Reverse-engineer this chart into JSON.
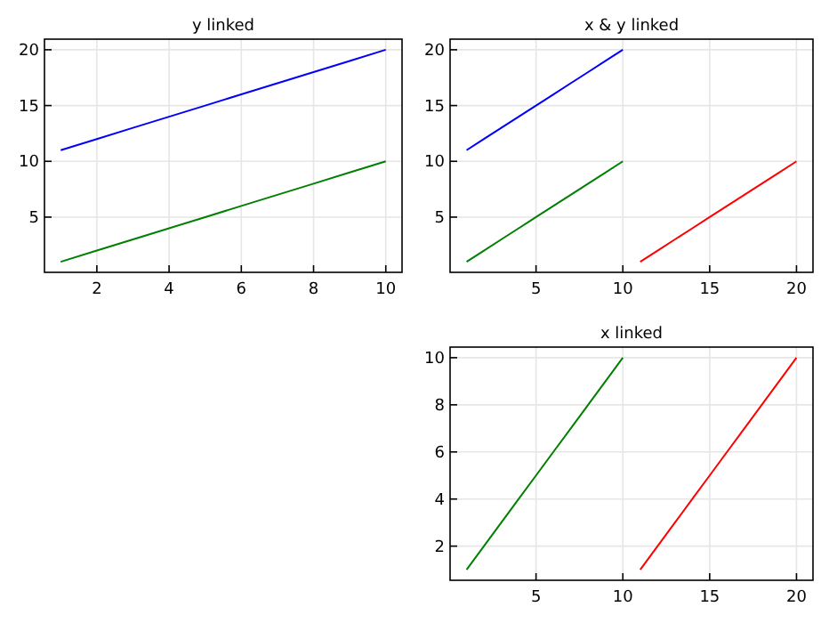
{
  "chart_data": [
    {
      "type": "line",
      "title": "y linked",
      "grid": true,
      "xlim": [
        0.55,
        10.45
      ],
      "xticks": [
        2,
        4,
        6,
        8,
        10
      ],
      "ylim": [
        0.05,
        20.95
      ],
      "yticks": [
        5,
        10,
        15,
        20
      ],
      "series": [
        {
          "color": "#0000ff",
          "x": [
            1,
            2,
            3,
            4,
            5,
            6,
            7,
            8,
            9,
            10
          ],
          "values": [
            11,
            12,
            13,
            14,
            15,
            16,
            17,
            18,
            19,
            20
          ]
        },
        {
          "color": "#008000",
          "x": [
            1,
            2,
            3,
            4,
            5,
            6,
            7,
            8,
            9,
            10
          ],
          "values": [
            1,
            2,
            3,
            4,
            5,
            6,
            7,
            8,
            9,
            10
          ]
        }
      ]
    },
    {
      "type": "line",
      "title": "x & y linked",
      "grid": true,
      "xlim": [
        0.05,
        20.95
      ],
      "xticks": [
        5,
        10,
        15,
        20
      ],
      "ylim": [
        0.05,
        20.95
      ],
      "yticks": [
        5,
        10,
        15,
        20
      ],
      "series": [
        {
          "color": "#0000ff",
          "x": [
            1,
            2,
            3,
            4,
            5,
            6,
            7,
            8,
            9,
            10
          ],
          "values": [
            11,
            12,
            13,
            14,
            15,
            16,
            17,
            18,
            19,
            20
          ]
        },
        {
          "color": "#008000",
          "x": [
            1,
            2,
            3,
            4,
            5,
            6,
            7,
            8,
            9,
            10
          ],
          "values": [
            1,
            2,
            3,
            4,
            5,
            6,
            7,
            8,
            9,
            10
          ]
        },
        {
          "color": "#ff0000",
          "x": [
            11,
            12,
            13,
            14,
            15,
            16,
            17,
            18,
            19,
            20
          ],
          "values": [
            1,
            2,
            3,
            4,
            5,
            6,
            7,
            8,
            9,
            10
          ]
        }
      ]
    },
    {
      "type": "line",
      "title": "x linked",
      "grid": true,
      "xlim": [
        0.05,
        20.95
      ],
      "xticks": [
        5,
        10,
        15,
        20
      ],
      "ylim": [
        0.55,
        10.45
      ],
      "yticks": [
        2,
        4,
        6,
        8,
        10
      ],
      "series": [
        {
          "color": "#008000",
          "x": [
            1,
            2,
            3,
            4,
            5,
            6,
            7,
            8,
            9,
            10
          ],
          "values": [
            1,
            2,
            3,
            4,
            5,
            6,
            7,
            8,
            9,
            10
          ]
        },
        {
          "color": "#ff0000",
          "x": [
            11,
            12,
            13,
            14,
            15,
            16,
            17,
            18,
            19,
            20
          ],
          "values": [
            1,
            2,
            3,
            4,
            5,
            6,
            7,
            8,
            9,
            10
          ]
        }
      ]
    }
  ]
}
